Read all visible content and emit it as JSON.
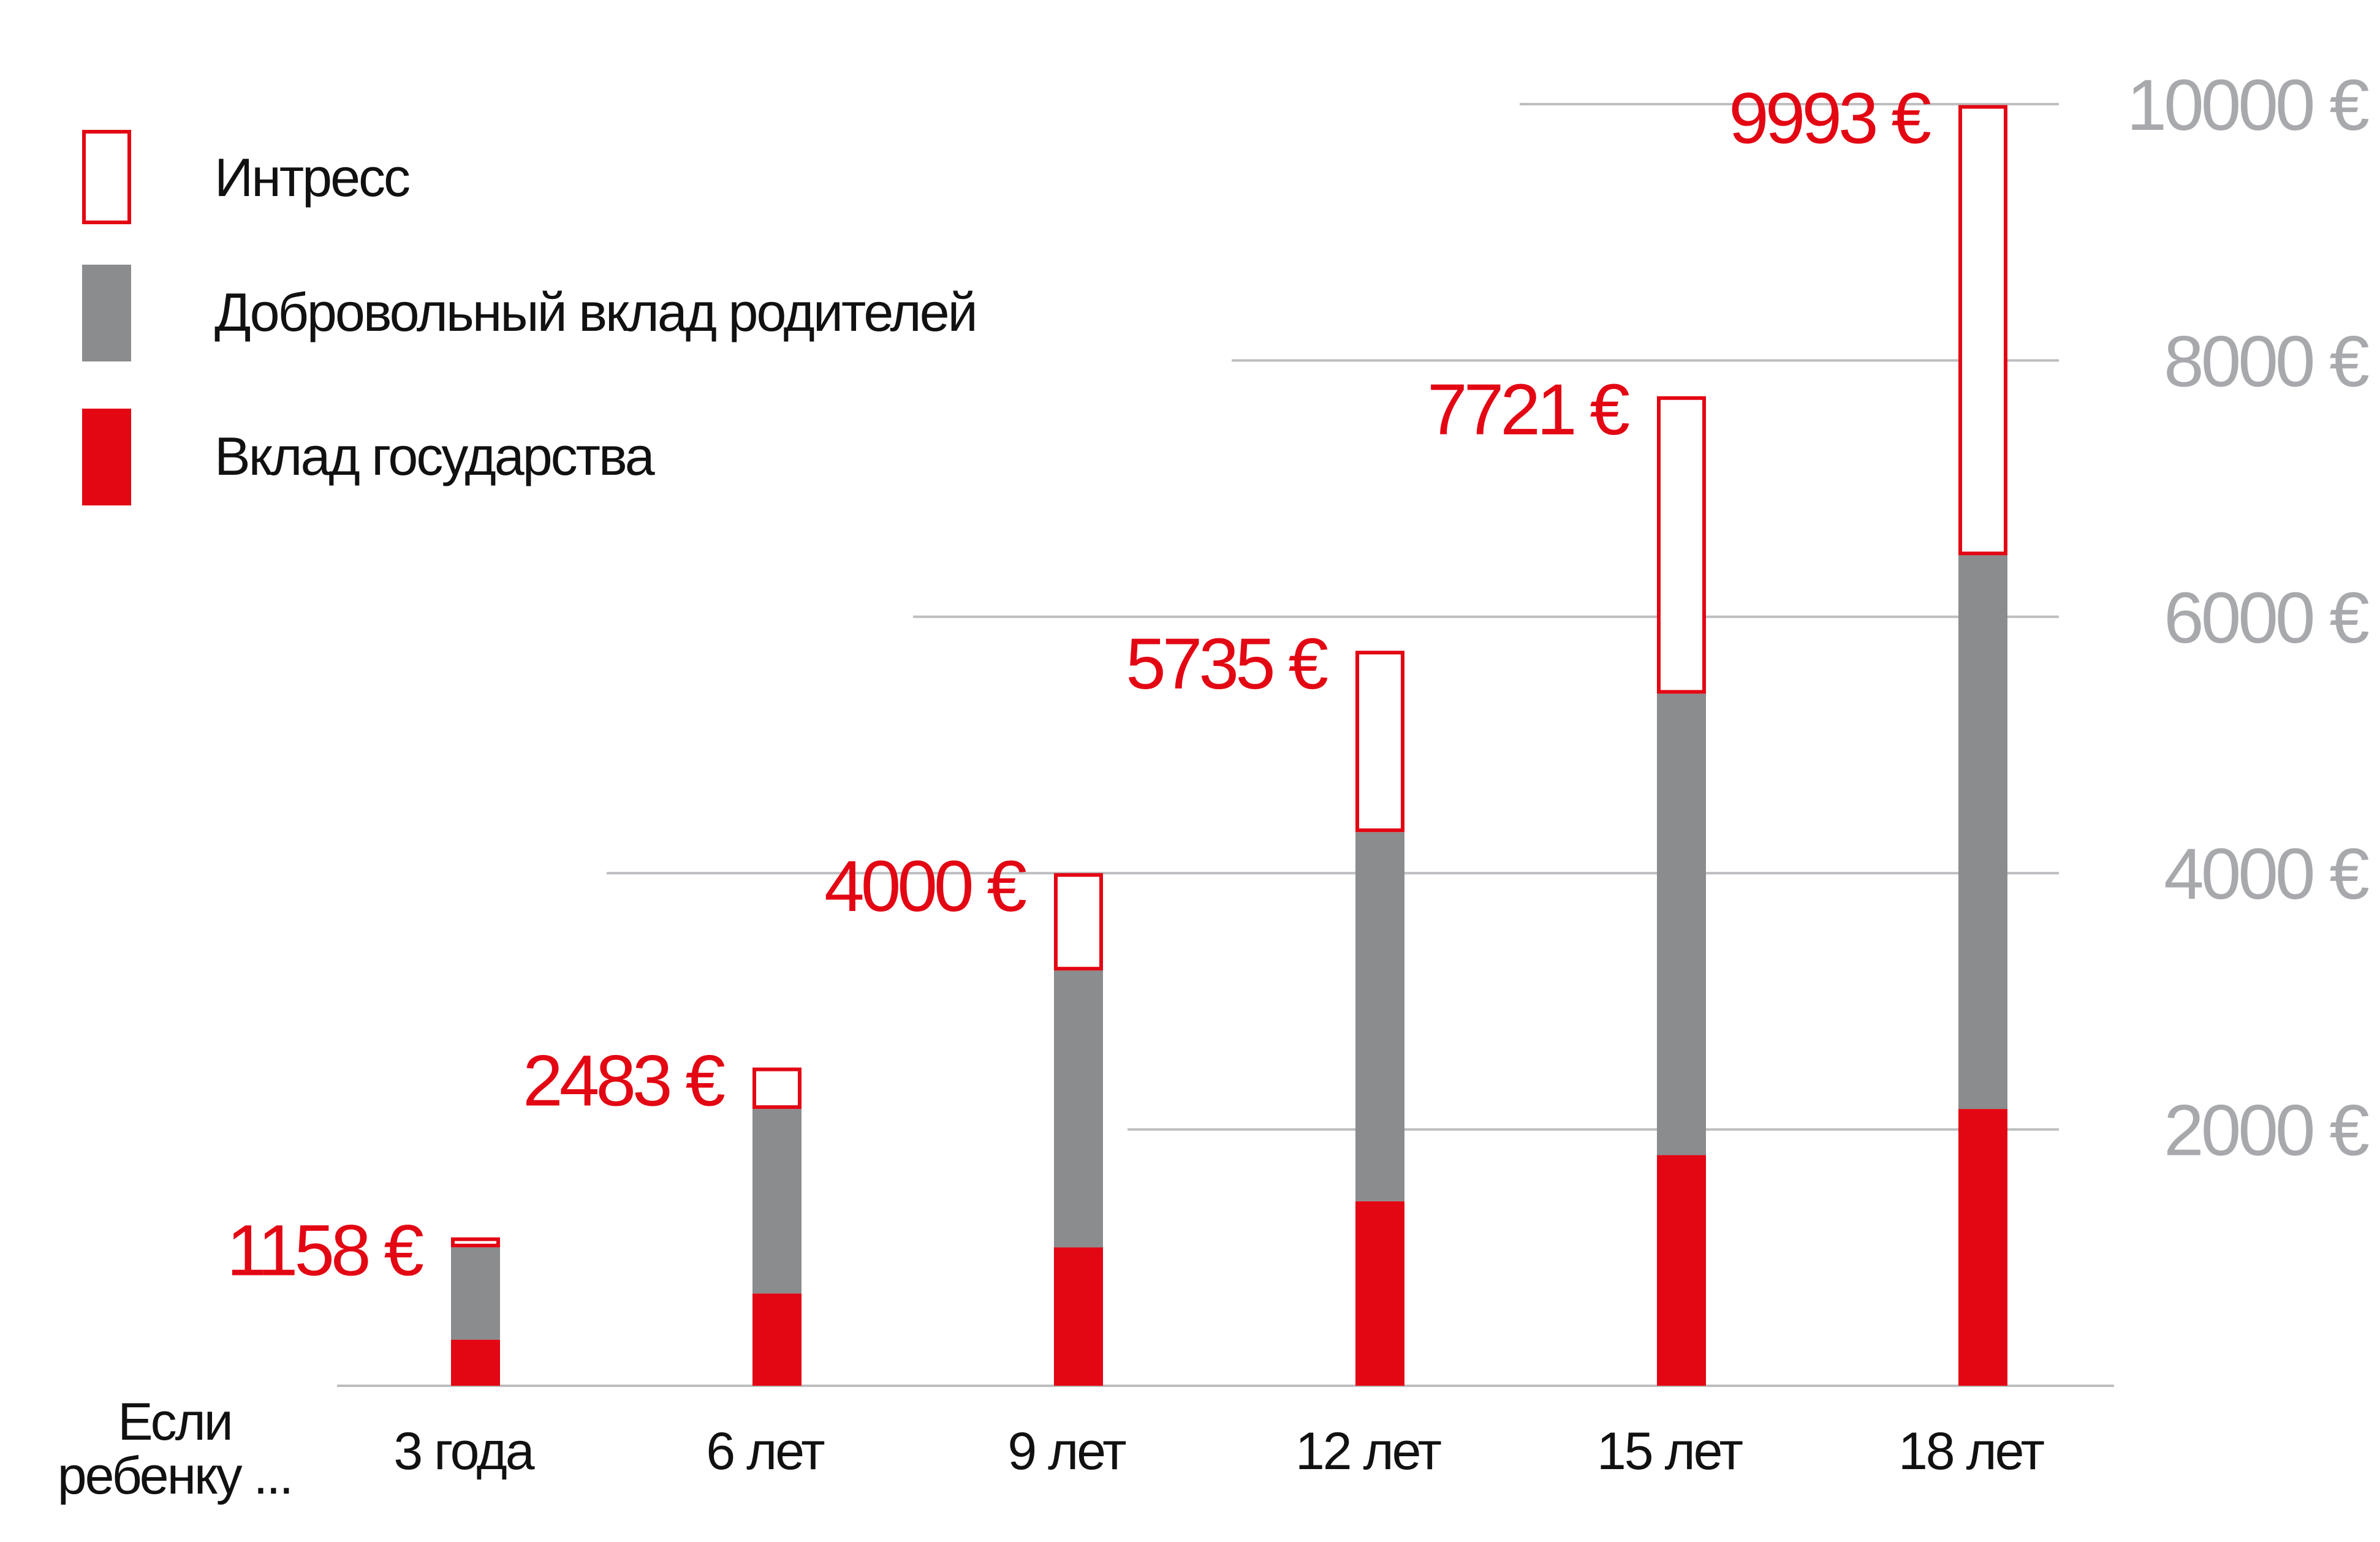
{
  "chart_data": {
    "type": "bar",
    "stacked": true,
    "title": "",
    "xlabel": "Если ребенку ...",
    "xlabel_lines": [
      "Если",
      "ребенку ..."
    ],
    "ylabel": "",
    "ylim": [
      0,
      10000
    ],
    "y_ticks": [
      2000,
      4000,
      6000,
      8000,
      10000
    ],
    "y_tick_labels": [
      "2000 €",
      "4000 €",
      "6000 €",
      "8000 €",
      "10000 €"
    ],
    "y_axis_position": "right",
    "grid": true,
    "legend_position": "top-left",
    "categories": [
      "3 года",
      "6 лет",
      "9 лет",
      "12 лет",
      "15 лет",
      "18 лет"
    ],
    "series": [
      {
        "name": "Вклад государства",
        "values": [
          360,
          720,
          1080,
          1440,
          1800,
          2160
        ],
        "color": "#e30613",
        "style": "filled"
      },
      {
        "name": "Добровольный вклад родителей",
        "values": [
          720,
          1440,
          2160,
          2880,
          3600,
          4320
        ],
        "color": "#8a8c8e",
        "style": "filled"
      },
      {
        "name": "Интресс",
        "values": [
          78,
          323,
          760,
          1415,
          2321,
          3513
        ],
        "color": "#e30613",
        "style": "outline"
      }
    ],
    "totals": [
      1158,
      2483,
      4000,
      5735,
      7721,
      9993
    ],
    "total_labels": [
      "1158 €",
      "2483 €",
      "4000 €",
      "5735 €",
      "7721 €",
      "9993 €"
    ],
    "legend": [
      {
        "name": "Интресс",
        "style": "outline",
        "color": "#e30613"
      },
      {
        "name": "Добровольный вклад родителей",
        "style": "filled",
        "color": "#8a8c8e"
      },
      {
        "name": "Вклад государства",
        "style": "filled",
        "color": "#e30613"
      }
    ],
    "colors": {
      "red": "#e30613",
      "gray": "#8a8c8e",
      "tick_text": "#a7a9ac",
      "grid": "#bcbec0",
      "text": "#111111"
    }
  }
}
